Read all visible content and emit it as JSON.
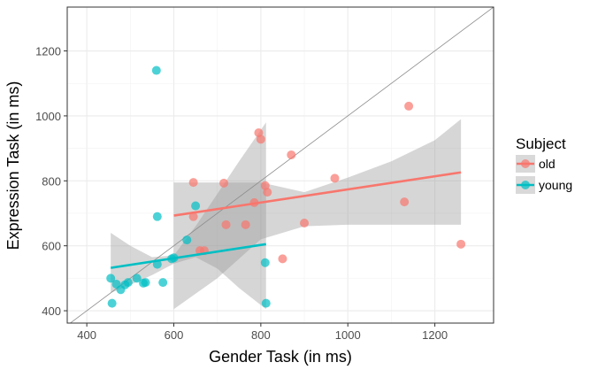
{
  "chart_data": {
    "type": "scatter",
    "xlabel": "Gender Task (in ms)",
    "ylabel": "Expression Task (in ms)",
    "xlim": [
      355,
      1335
    ],
    "ylim": [
      362,
      1335
    ],
    "x_ticks": [
      "400",
      "600",
      "800",
      "1000",
      "1200"
    ],
    "y_ticks": [
      "400",
      "600",
      "800",
      "1000",
      "1200"
    ],
    "x_tick_values": [
      400,
      600,
      800,
      1000,
      1200
    ],
    "y_tick_values": [
      400,
      600,
      800,
      1000,
      1200
    ],
    "grid": true,
    "identity_line": true,
    "legend": {
      "title": "Subject",
      "position": "right",
      "entries": [
        "old",
        "young"
      ]
    },
    "series": [
      {
        "name": "old",
        "color": "#F8766D",
        "points": [
          [
            645,
            795
          ],
          [
            645,
            690
          ],
          [
            660,
            585
          ],
          [
            670,
            585
          ],
          [
            715,
            793
          ],
          [
            720,
            665
          ],
          [
            765,
            665
          ],
          [
            785,
            733
          ],
          [
            795,
            948
          ],
          [
            800,
            928
          ],
          [
            810,
            785
          ],
          [
            815,
            765
          ],
          [
            850,
            560
          ],
          [
            870,
            880
          ],
          [
            900,
            670
          ],
          [
            970,
            808
          ],
          [
            1130,
            735
          ],
          [
            1140,
            1030
          ],
          [
            1260,
            605
          ]
        ],
        "fit": {
          "x": [
            600,
            1260
          ],
          "y": [
            693,
            826
          ]
        },
        "band": {
          "x": [
            600,
            700,
            800,
            900,
            1000,
            1100,
            1200,
            1260
          ],
          "lower": [
            405,
            500,
            620,
            660,
            665,
            665,
            665,
            665
          ],
          "upper": [
            795,
            795,
            795,
            765,
            810,
            860,
            925,
            990
          ]
        }
      },
      {
        "name": "young",
        "color": "#00BFC4",
        "points": [
          [
            455,
            500
          ],
          [
            458,
            423
          ],
          [
            468,
            482
          ],
          [
            478,
            465
          ],
          [
            488,
            480
          ],
          [
            495,
            487
          ],
          [
            515,
            500
          ],
          [
            530,
            485
          ],
          [
            535,
            487
          ],
          [
            560,
            1140
          ],
          [
            562,
            690
          ],
          [
            562,
            543
          ],
          [
            575,
            487
          ],
          [
            595,
            560
          ],
          [
            600,
            563
          ],
          [
            630,
            618
          ],
          [
            650,
            723
          ],
          [
            810,
            548
          ],
          [
            812,
            423
          ]
        ],
        "fit": {
          "x": [
            455,
            812
          ],
          "y": [
            532,
            605
          ]
        },
        "band": {
          "x": [
            455,
            500,
            550,
            600,
            650,
            700,
            750,
            812
          ],
          "lower": [
            455,
            480,
            510,
            545,
            565,
            530,
            470,
            405
          ],
          "upper": [
            640,
            600,
            565,
            570,
            660,
            760,
            860,
            980
          ]
        }
      }
    ]
  }
}
